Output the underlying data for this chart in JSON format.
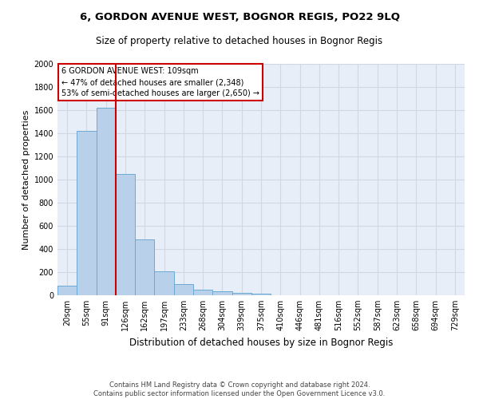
{
  "title_line1": "6, GORDON AVENUE WEST, BOGNOR REGIS, PO22 9LQ",
  "title_line2": "Size of property relative to detached houses in Bognor Regis",
  "xlabel": "Distribution of detached houses by size in Bognor Regis",
  "ylabel": "Number of detached properties",
  "bin_labels": [
    "20sqm",
    "55sqm",
    "91sqm",
    "126sqm",
    "162sqm",
    "197sqm",
    "233sqm",
    "268sqm",
    "304sqm",
    "339sqm",
    "375sqm",
    "410sqm",
    "446sqm",
    "481sqm",
    "516sqm",
    "552sqm",
    "587sqm",
    "623sqm",
    "658sqm",
    "694sqm",
    "729sqm"
  ],
  "bar_heights": [
    80,
    1420,
    1620,
    1050,
    480,
    205,
    100,
    45,
    35,
    20,
    15,
    0,
    0,
    0,
    0,
    0,
    0,
    0,
    0,
    0,
    0
  ],
  "bar_color": "#b8d0ea",
  "bar_edge_color": "#6aaad4",
  "grid_color": "#d0d8e4",
  "bg_color": "#e8eef8",
  "red_line_x": 2.5,
  "annotation_title": "6 GORDON AVENUE WEST: 109sqm",
  "annotation_line2": "← 47% of detached houses are smaller (2,348)",
  "annotation_line3": "53% of semi-detached houses are larger (2,650) →",
  "annotation_box_color": "#ffffff",
  "annotation_border_color": "#cc0000",
  "footer_line1": "Contains HM Land Registry data © Crown copyright and database right 2024.",
  "footer_line2": "Contains public sector information licensed under the Open Government Licence v3.0.",
  "ylim": [
    0,
    2000
  ],
  "yticks": [
    0,
    200,
    400,
    600,
    800,
    1000,
    1200,
    1400,
    1600,
    1800,
    2000
  ],
  "title1_fontsize": 9.5,
  "title2_fontsize": 8.5,
  "ylabel_fontsize": 8,
  "xlabel_fontsize": 8.5,
  "tick_fontsize": 7,
  "annot_fontsize": 7
}
